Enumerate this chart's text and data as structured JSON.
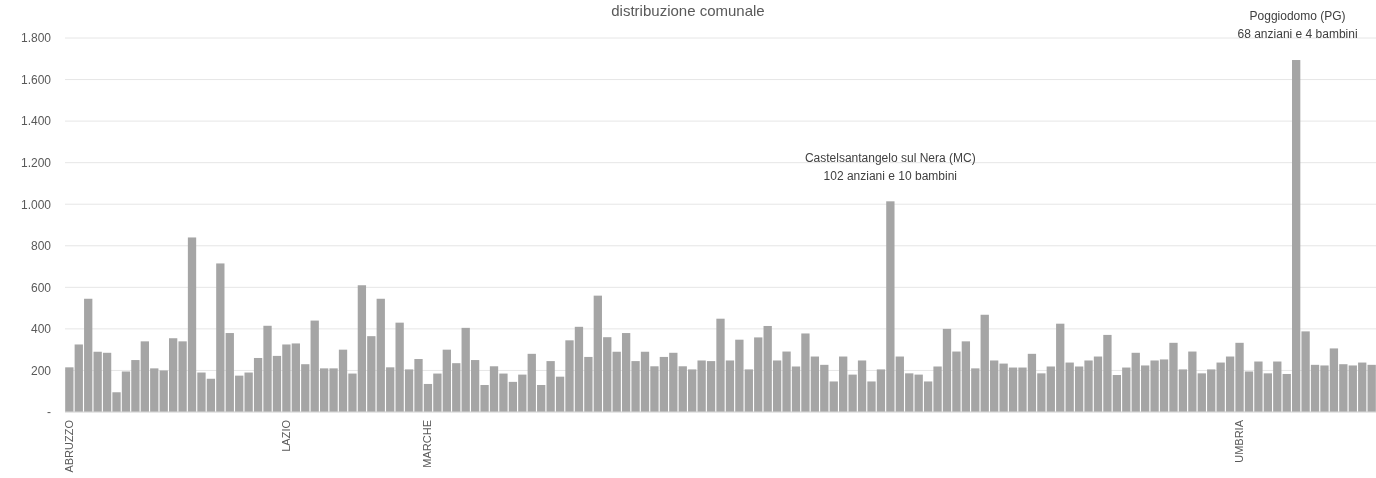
{
  "chart_data": {
    "type": "bar",
    "title": "distribuzione comunale",
    "categories": [
      "ABRUZZO",
      null,
      null,
      null,
      null,
      null,
      null,
      null,
      null,
      null,
      null,
      null,
      null,
      null,
      null,
      null,
      null,
      null,
      null,
      null,
      null,
      null,
      null,
      "LAZIO",
      null,
      null,
      null,
      null,
      null,
      null,
      null,
      null,
      null,
      null,
      null,
      null,
      null,
      null,
      "MARCHE",
      null,
      null,
      null,
      null,
      null,
      null,
      null,
      null,
      null,
      null,
      null,
      null,
      null,
      null,
      null,
      null,
      null,
      null,
      null,
      null,
      null,
      null,
      null,
      null,
      null,
      null,
      null,
      null,
      null,
      null,
      null,
      null,
      null,
      null,
      null,
      null,
      null,
      null,
      null,
      null,
      null,
      null,
      null,
      null,
      null,
      null,
      null,
      null,
      null,
      null,
      null,
      null,
      null,
      null,
      null,
      null,
      null,
      null,
      null,
      null,
      null,
      null,
      null,
      null,
      null,
      null,
      null,
      null,
      null,
      null,
      null,
      null,
      null,
      null,
      null,
      null,
      null,
      null,
      null,
      null,
      null,
      null,
      null,
      null,
      null,
      "UMBRIA",
      null,
      null,
      null,
      null,
      null,
      null,
      null,
      null,
      null,
      null,
      null,
      null,
      null,
      null
    ],
    "values": [
      215,
      325,
      545,
      290,
      285,
      95,
      195,
      250,
      340,
      210,
      200,
      355,
      340,
      840,
      190,
      160,
      715,
      380,
      175,
      190,
      260,
      415,
      270,
      325,
      330,
      230,
      440,
      210,
      210,
      300,
      185,
      610,
      365,
      545,
      215,
      430,
      205,
      255,
      135,
      185,
      300,
      235,
      405,
      250,
      130,
      220,
      185,
      145,
      180,
      280,
      130,
      245,
      170,
      345,
      410,
      265,
      560,
      360,
      290,
      380,
      245,
      290,
      220,
      265,
      285,
      220,
      205,
      248,
      245,
      449,
      248,
      348,
      205,
      359,
      414,
      248,
      291,
      219,
      378,
      267,
      227,
      147,
      267,
      180,
      248,
      147,
      205,
      1014,
      267,
      186,
      180,
      147,
      219,
      400,
      291,
      340,
      210,
      468,
      248,
      233,
      214,
      214,
      280,
      186,
      219,
      425,
      238,
      219,
      248,
      267,
      371,
      178,
      214,
      285,
      224,
      248,
      253,
      333,
      205,
      291,
      186,
      205,
      238,
      267,
      333,
      195,
      243,
      186,
      243,
      183,
      1694,
      388,
      227,
      224,
      306,
      230,
      224,
      238,
      227
    ],
    "color": "#a5a5a5",
    "ylim": [
      0,
      1800
    ],
    "yticks": [
      {
        "value": 0,
        "label": "-"
      },
      200,
      400,
      600,
      800,
      {
        "value": 1000,
        "label": "1.000"
      },
      {
        "value": 1200,
        "label": "1.200"
      },
      {
        "value": 1400,
        "label": "1.400"
      },
      {
        "value": 1600,
        "label": "1.600"
      },
      {
        "value": 1800,
        "label": "1.800"
      }
    ],
    "grid": "y",
    "annotations": [
      "Castelsantangelo sul Nera (MC)\n102 anziani e 10 bambini",
      "Poggiodomo (PG)\n68 anziani e 4 bambini"
    ]
  }
}
